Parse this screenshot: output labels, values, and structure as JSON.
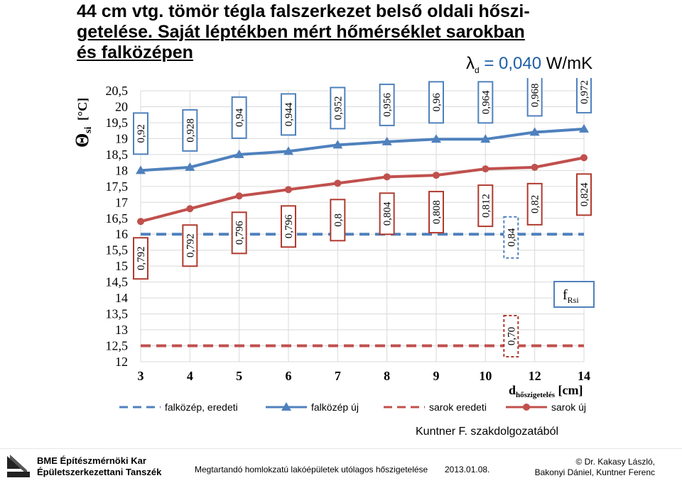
{
  "header": {
    "title_line1": "44 cm vtg. tömör tégla falszerkezet belső oldali hőszi-",
    "title_line2": "getelése. Saját léptékben mért hőmérséklet sarokban ",
    "title_line3": "és falközépen",
    "lambda_symbol": "λ",
    "lambda_sub": "d",
    "lambda_value": " = 0,040",
    "lambda_unit": " W/mK"
  },
  "chart_data": {
    "type": "line",
    "ylabel_main": "Θ",
    "ylabel_sub": "si",
    "ylabel_unit": "[°C]",
    "xlabel_main": "d",
    "xlabel_sub": "hőszigetelés",
    "xlabel_unit": " [cm]",
    "categories": [
      "3",
      "4",
      "5",
      "6",
      "7",
      "8",
      "9",
      "10",
      "12",
      "14"
    ],
    "ylim": [
      12,
      20.5
    ],
    "yticks": [
      "20,5",
      "20",
      "19,5",
      "19",
      "18,5",
      "18",
      "17,5",
      "17",
      "16,5",
      "16",
      "15,5",
      "15",
      "14,5",
      "14",
      "13,5",
      "13",
      "12,5",
      "12"
    ],
    "grid": true,
    "legend_position": "bottom",
    "series": [
      {
        "name": "falközép, eredeti",
        "style": "dashed",
        "color": "#4f81bd",
        "values": [
          16,
          16,
          16,
          16,
          16,
          16,
          16,
          16,
          16,
          16
        ]
      },
      {
        "name": "falközép új",
        "style": "solid-triangle",
        "color": "#4f81bd",
        "values": [
          18.0,
          18.1,
          18.5,
          18.6,
          18.8,
          18.9,
          18.98,
          18.98,
          19.2,
          19.3
        ]
      },
      {
        "name": "sarok eredeti",
        "style": "dashed",
        "color": "#c0504d",
        "values": [
          12.5,
          12.5,
          12.5,
          12.5,
          12.5,
          12.5,
          12.5,
          12.5,
          12.5,
          12.5
        ]
      },
      {
        "name": "sarok új",
        "style": "solid-circle",
        "color": "#c0504d",
        "values": [
          16.4,
          16.8,
          17.2,
          17.4,
          17.6,
          17.8,
          17.85,
          18.05,
          18.1,
          18.4
        ]
      }
    ],
    "frsi_label": "f",
    "frsi_sub": "Rsi",
    "annotations": {
      "blue_new": [
        "0,92",
        "0,928",
        "0,94",
        "0,944",
        "0,952",
        "0,956",
        "0,96",
        "0,964",
        "0,968",
        "0,972"
      ],
      "red_new": [
        "0,792",
        "0,792",
        "0,796",
        "0,796",
        "0,8",
        "0,804",
        "0,808",
        "0,812",
        "0,82",
        "0,824"
      ],
      "blue_orig": "0,84",
      "red_orig": "0,70"
    }
  },
  "credit": "Kuntner F. szakdolgozatából",
  "footer": {
    "org_line1": "BME Építészmérnöki Kar",
    "org_line2": "Épületszerkezettani Tanszék",
    "text": "Megtartandó homlokzatú lakóépületek utólagos hőszigetelése",
    "date": "2013.01.08.",
    "author_line1": "© Dr. Kakasy László,",
    "author_line2": "Bakonyi Dániel, Kuntner Ferenc"
  },
  "colors": {
    "blue": "#4f81bd",
    "red": "#c0504d",
    "lambda": "#1f5fa8",
    "annot_red": "#b03a2e"
  }
}
